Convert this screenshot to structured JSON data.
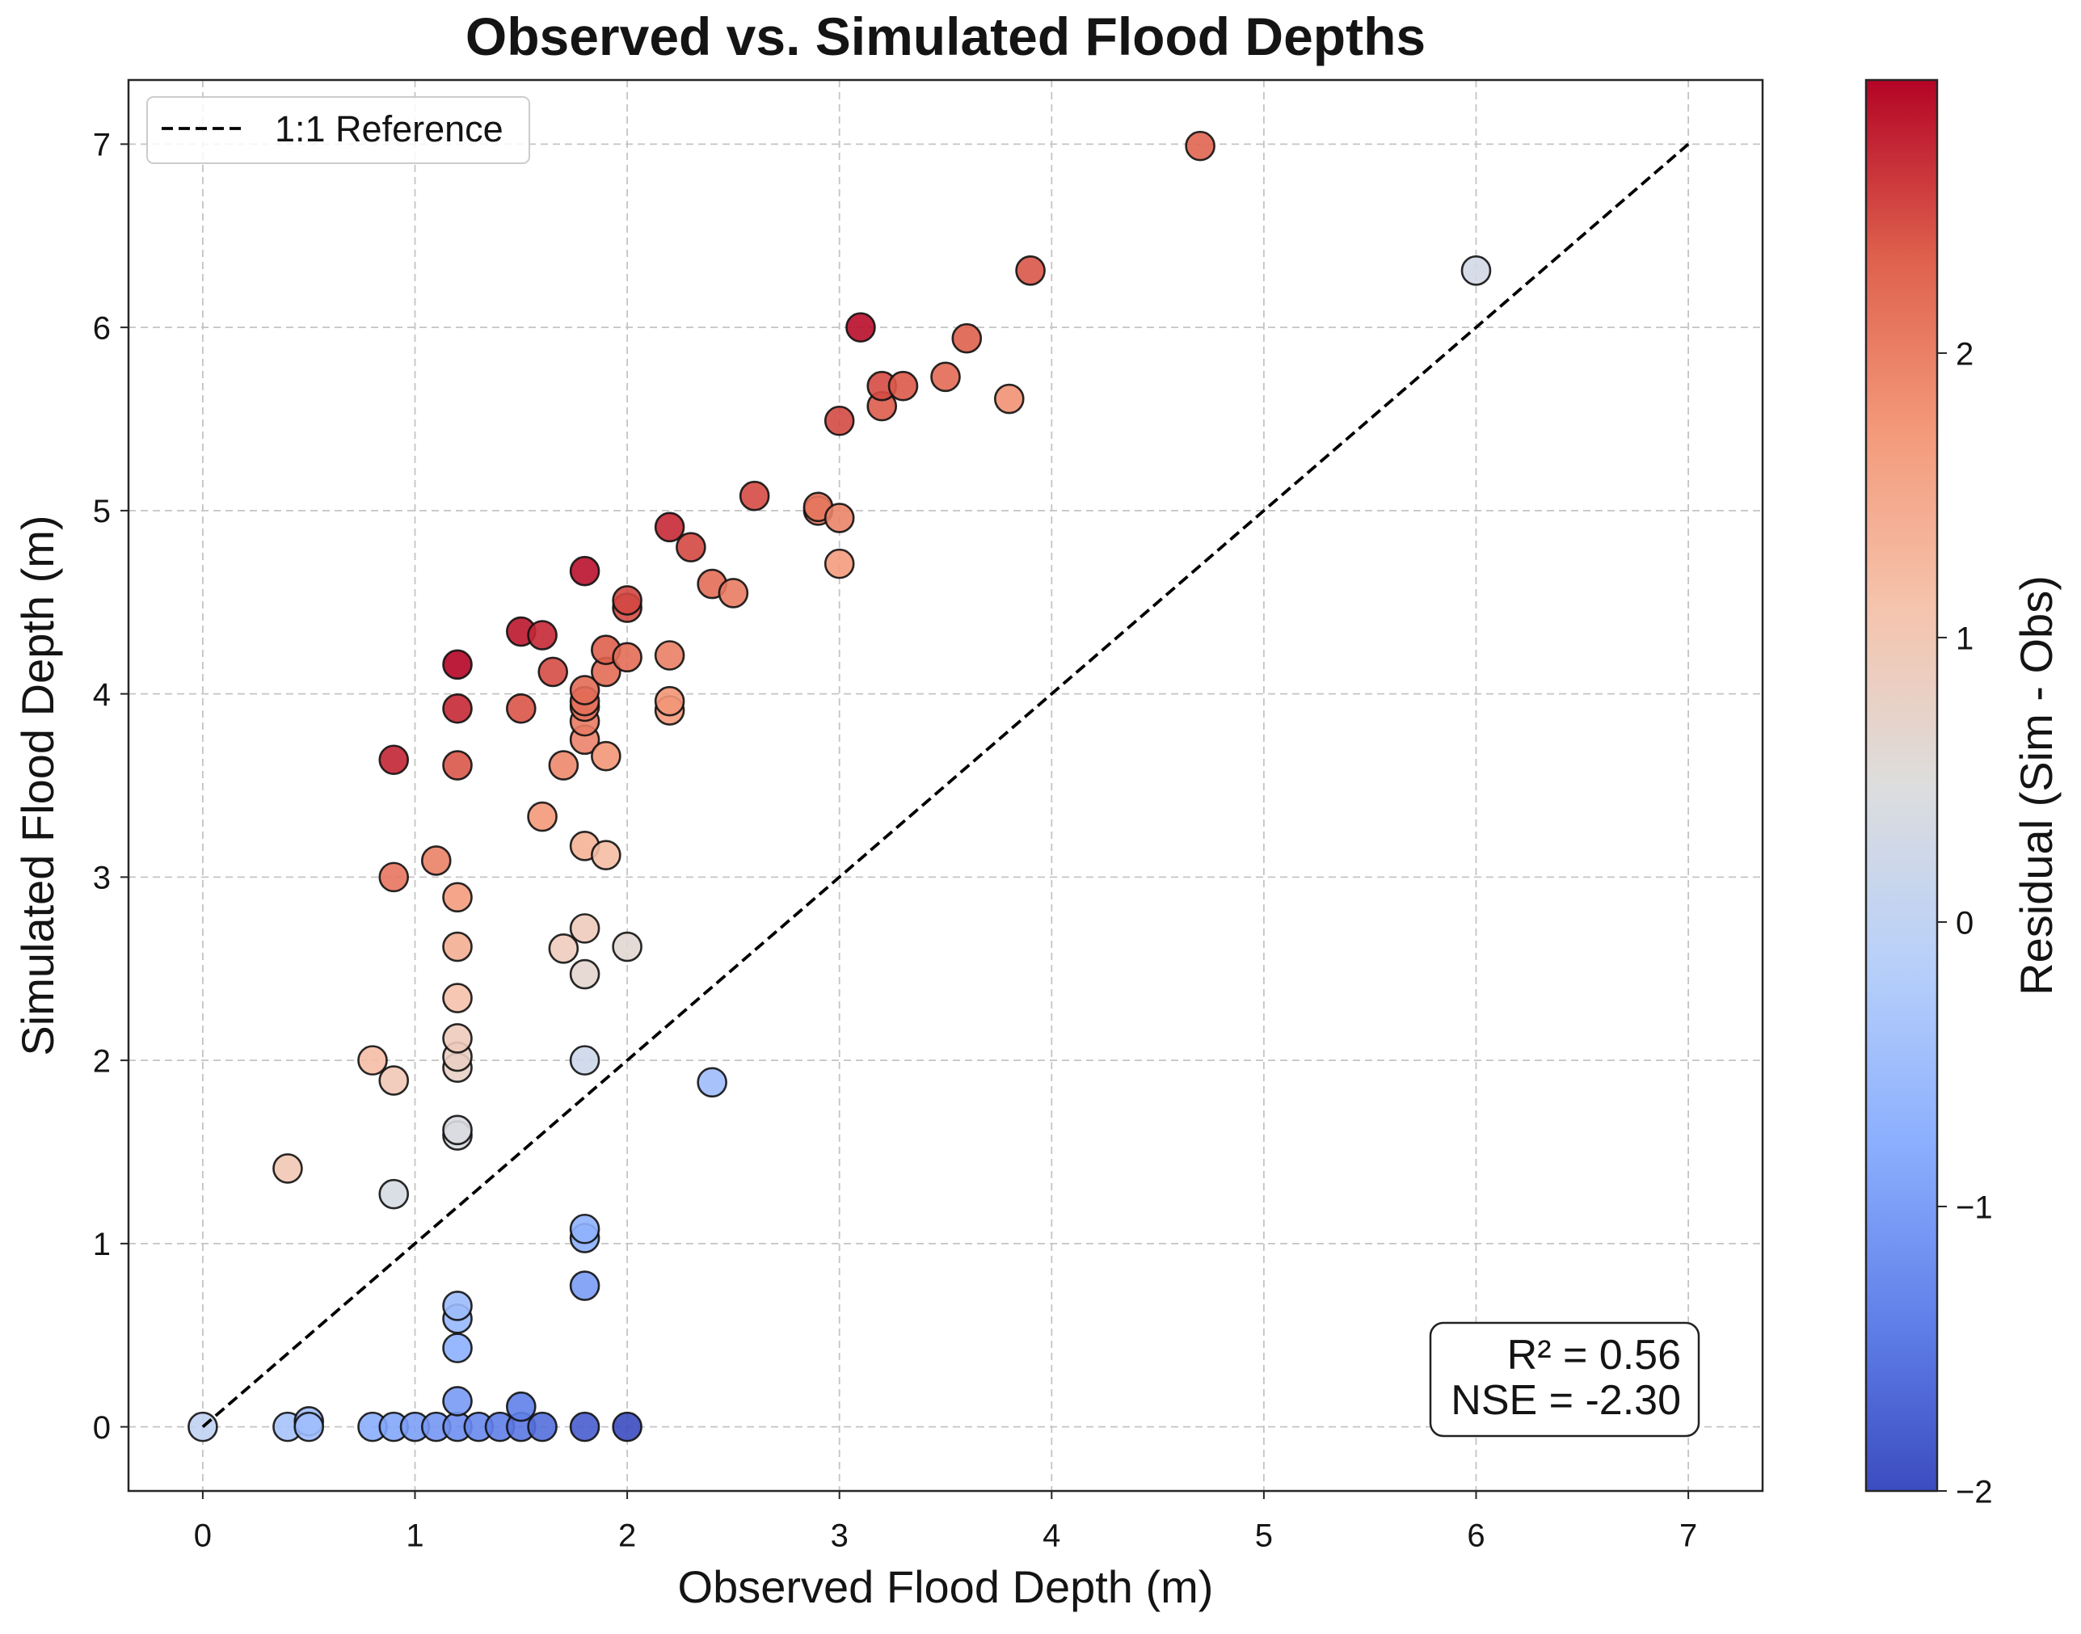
{
  "chart_data": {
    "type": "scatter",
    "title": "Observed vs. Simulated Flood Depths",
    "xlabel": "Observed Flood Depth (m)",
    "ylabel": "Simulated Flood Depth (m)",
    "xlim": [
      -0.35,
      7.35
    ],
    "ylim": [
      -0.35,
      7.35
    ],
    "xticks": [
      0,
      1,
      2,
      3,
      4,
      5,
      6,
      7
    ],
    "xtick_labels": [
      "0",
      "1",
      "2",
      "3",
      "4",
      "5",
      "6",
      "7"
    ],
    "yticks": [
      0,
      1,
      2,
      3,
      4,
      5,
      6,
      7
    ],
    "ytick_labels": [
      "0",
      "1",
      "2",
      "3",
      "4",
      "5",
      "6",
      "7"
    ],
    "grid": true,
    "points": [
      [
        0.0,
        0.0
      ],
      [
        0.4,
        0.0
      ],
      [
        0.5,
        0.03
      ],
      [
        0.5,
        0.0
      ],
      [
        0.8,
        0.0
      ],
      [
        0.9,
        0.0
      ],
      [
        1.0,
        0.0
      ],
      [
        1.1,
        0.0
      ],
      [
        1.2,
        0.0
      ],
      [
        1.3,
        0.0
      ],
      [
        1.4,
        0.0
      ],
      [
        1.5,
        0.0
      ],
      [
        1.6,
        0.0
      ],
      [
        1.8,
        0.0
      ],
      [
        2.0,
        0.0
      ],
      [
        1.2,
        0.14
      ],
      [
        1.5,
        0.11
      ],
      [
        1.2,
        0.43
      ],
      [
        1.2,
        0.59
      ],
      [
        1.2,
        0.66
      ],
      [
        1.2,
        1.59
      ],
      [
        1.2,
        1.62
      ],
      [
        1.2,
        1.96
      ],
      [
        1.2,
        2.02
      ],
      [
        1.2,
        2.12
      ],
      [
        1.2,
        2.34
      ],
      [
        1.2,
        2.62
      ],
      [
        1.2,
        2.89
      ],
      [
        1.2,
        3.61
      ],
      [
        1.2,
        3.92
      ],
      [
        1.2,
        4.16
      ],
      [
        1.8,
        0.77
      ],
      [
        1.8,
        1.03
      ],
      [
        1.8,
        1.08
      ],
      [
        1.8,
        2.0
      ],
      [
        1.8,
        2.47
      ],
      [
        1.8,
        2.72
      ],
      [
        1.8,
        3.17
      ],
      [
        1.8,
        3.75
      ],
      [
        1.8,
        3.85
      ],
      [
        1.8,
        3.93
      ],
      [
        1.8,
        3.96
      ],
      [
        1.8,
        4.02
      ],
      [
        1.8,
        4.67
      ],
      [
        0.9,
        1.27
      ],
      [
        0.9,
        1.89
      ],
      [
        0.9,
        3.0
      ],
      [
        0.9,
        3.64
      ],
      [
        0.8,
        2.0
      ],
      [
        0.4,
        1.41
      ],
      [
        1.1,
        3.09
      ],
      [
        1.5,
        3.92
      ],
      [
        1.5,
        4.34
      ],
      [
        1.6,
        3.33
      ],
      [
        1.6,
        4.32
      ],
      [
        1.65,
        4.12
      ],
      [
        1.7,
        2.61
      ],
      [
        1.7,
        3.61
      ],
      [
        1.9,
        3.12
      ],
      [
        1.9,
        3.66
      ],
      [
        1.9,
        4.12
      ],
      [
        1.9,
        4.24
      ],
      [
        2.0,
        2.62
      ],
      [
        2.0,
        4.2
      ],
      [
        2.0,
        4.47
      ],
      [
        2.0,
        4.51
      ],
      [
        2.2,
        3.91
      ],
      [
        2.2,
        3.96
      ],
      [
        2.2,
        4.21
      ],
      [
        2.2,
        4.91
      ],
      [
        2.3,
        4.8
      ],
      [
        2.4,
        1.88
      ],
      [
        2.4,
        4.6
      ],
      [
        2.5,
        4.55
      ],
      [
        2.6,
        5.08
      ],
      [
        2.9,
        5.0
      ],
      [
        2.9,
        5.02
      ],
      [
        3.0,
        4.71
      ],
      [
        3.0,
        4.96
      ],
      [
        3.0,
        5.49
      ],
      [
        3.1,
        6.0
      ],
      [
        3.2,
        5.57
      ],
      [
        3.2,
        5.68
      ],
      [
        3.3,
        5.68
      ],
      [
        3.5,
        5.73
      ],
      [
        3.6,
        5.94
      ],
      [
        3.8,
        5.61
      ],
      [
        3.9,
        6.31
      ],
      [
        4.7,
        6.99
      ],
      [
        6.0,
        6.31
      ]
    ],
    "reference_line": {
      "label": "1:1 Reference",
      "x": [
        0,
        7
      ],
      "y": [
        0,
        7
      ],
      "color": "#000000"
    },
    "legend_position": "top-left",
    "colorbar": {
      "label": "Residual (Sim - Obs)",
      "range": [
        -2.0,
        2.96
      ],
      "ticks": [
        -2,
        -1,
        0,
        1,
        2
      ],
      "tick_labels": [
        "−2",
        "−1",
        "0",
        "1",
        "2"
      ],
      "colormap_stops": [
        "#3b4cc0",
        "#6282ea",
        "#8db0fe",
        "#b8d0f9",
        "#dddddd",
        "#f5c4ad",
        "#f49a7b",
        "#de604d",
        "#b40426"
      ]
    },
    "annotation": [
      "R² = 0.56",
      "NSE = -2.30"
    ]
  }
}
